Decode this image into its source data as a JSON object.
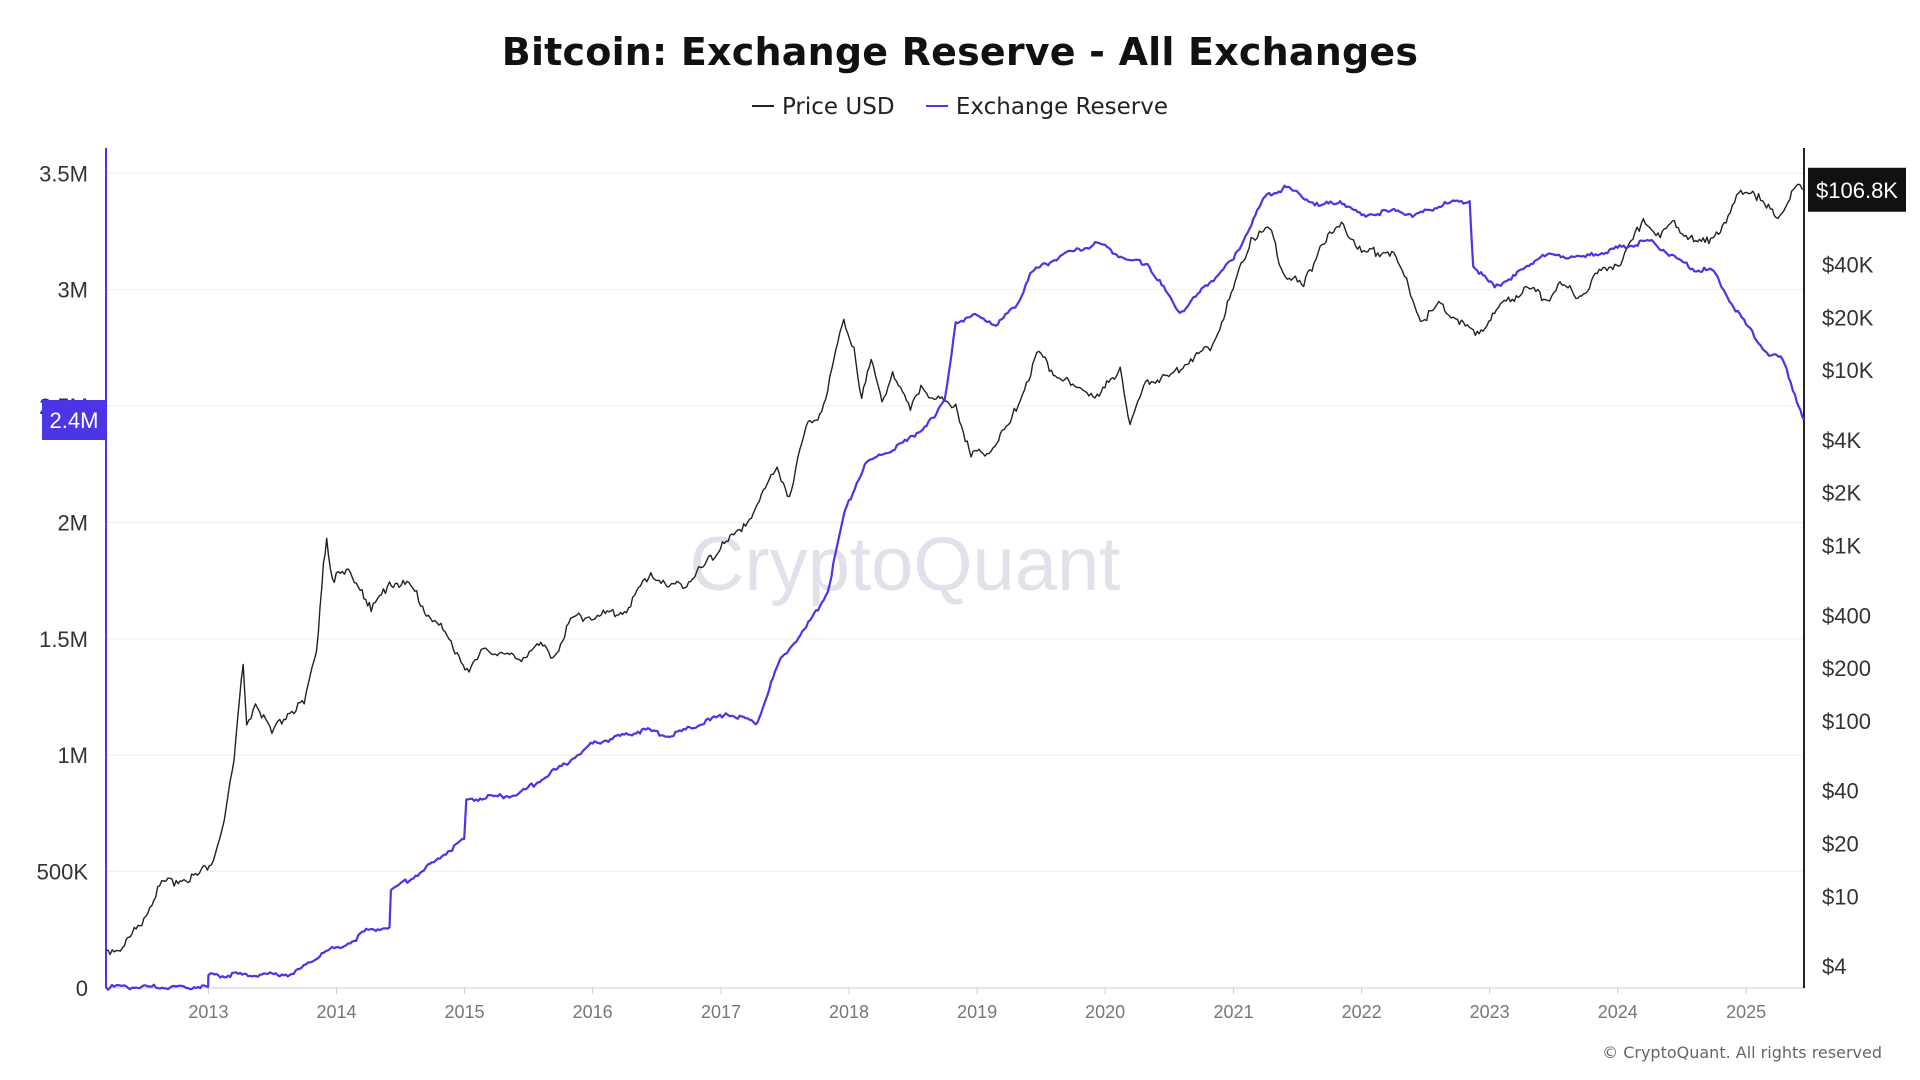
{
  "title": "Bitcoin: Exchange Reserve - All Exchanges",
  "legend": [
    {
      "label": "Price USD",
      "color": "#222222"
    },
    {
      "label": "Exchange Reserve",
      "color": "#4b35e6"
    }
  ],
  "watermark": "CryptoQuant",
  "copyright": "© CryptoQuant. All rights reserved",
  "chart_data": {
    "type": "line",
    "title": "Bitcoin: Exchange Reserve - All Exchanges",
    "xlabel": "",
    "x_ticks": [
      "2013",
      "2014",
      "2015",
      "2016",
      "2017",
      "2018",
      "2019",
      "2020",
      "2021",
      "2022",
      "2023",
      "2024",
      "2025"
    ],
    "xlim": [
      "2012-03-15",
      "2025-06-15"
    ],
    "y_left": {
      "label": "",
      "range": [
        0,
        3600000
      ],
      "ticks": [
        0,
        500000,
        1000000,
        1500000,
        2000000,
        2500000,
        3000000,
        3500000
      ],
      "tick_labels": [
        "0",
        "500K",
        "1M",
        "1.5M",
        "2M",
        "2.5M",
        "3M",
        "3.5M"
      ],
      "current_value_label": "2.4M",
      "current_value": 2440000
    },
    "y_right": {
      "label": "",
      "scale": "log",
      "range": [
        3,
        180000
      ],
      "ticks": [
        4,
        10,
        20,
        40,
        100,
        200,
        400,
        1000,
        2000,
        4000,
        10000,
        20000,
        40000
      ],
      "tick_labels": [
        "$4",
        "$10",
        "$20",
        "$40",
        "$100",
        "$200",
        "$400",
        "$1K",
        "$2K",
        "$4K",
        "$10K",
        "$20K",
        "$40K"
      ],
      "current_value_label": "$106.8K",
      "current_value": 106800
    },
    "grid": "horizontal",
    "series": [
      {
        "name": "Price USD",
        "axis": "right",
        "color": "#222222",
        "points": [
          [
            "2012-03-15",
            4.9
          ],
          [
            "2012-05-01",
            5.1
          ],
          [
            "2012-07-01",
            7.5
          ],
          [
            "2012-08-15",
            11.5
          ],
          [
            "2012-10-01",
            12.3
          ],
          [
            "2012-12-01",
            13.2
          ],
          [
            "2013-01-15",
            16
          ],
          [
            "2013-02-15",
            27
          ],
          [
            "2013-03-15",
            60
          ],
          [
            "2013-04-10",
            210
          ],
          [
            "2013-04-20",
            95
          ],
          [
            "2013-05-15",
            125
          ],
          [
            "2013-07-01",
            85
          ],
          [
            "2013-08-15",
            110
          ],
          [
            "2013-10-01",
            125
          ],
          [
            "2013-11-05",
            250
          ],
          [
            "2013-11-25",
            800
          ],
          [
            "2013-12-04",
            1100
          ],
          [
            "2013-12-20",
            650
          ],
          [
            "2014-02-10",
            700
          ],
          [
            "2014-03-15",
            560
          ],
          [
            "2014-04-10",
            420
          ],
          [
            "2014-06-01",
            620
          ],
          [
            "2014-08-01",
            590
          ],
          [
            "2014-09-20",
            400
          ],
          [
            "2014-11-01",
            330
          ],
          [
            "2015-01-14",
            190
          ],
          [
            "2015-03-01",
            260
          ],
          [
            "2015-06-01",
            225
          ],
          [
            "2015-08-01",
            270
          ],
          [
            "2015-09-15",
            235
          ],
          [
            "2015-11-05",
            390
          ],
          [
            "2016-01-15",
            400
          ],
          [
            "2016-04-01",
            420
          ],
          [
            "2016-06-15",
            700
          ],
          [
            "2016-08-01",
            580
          ],
          [
            "2016-10-01",
            620
          ],
          [
            "2016-12-31",
            960
          ],
          [
            "2017-01-05",
            1050
          ],
          [
            "2017-03-01",
            1200
          ],
          [
            "2017-06-10",
            2800
          ],
          [
            "2017-07-15",
            1900
          ],
          [
            "2017-09-01",
            4800
          ],
          [
            "2017-10-15",
            5800
          ],
          [
            "2017-12-17",
            19500
          ],
          [
            "2018-01-15",
            13500
          ],
          [
            "2018-02-06",
            6900
          ],
          [
            "2018-03-05",
            11500
          ],
          [
            "2018-04-05",
            6600
          ],
          [
            "2018-05-05",
            9800
          ],
          [
            "2018-06-25",
            5900
          ],
          [
            "2018-07-25",
            8200
          ],
          [
            "2018-09-01",
            6800
          ],
          [
            "2018-11-01",
            6400
          ],
          [
            "2018-12-15",
            3200
          ],
          [
            "2019-02-15",
            3600
          ],
          [
            "2019-04-05",
            5000
          ],
          [
            "2019-06-26",
            12800
          ],
          [
            "2019-08-01",
            10000
          ],
          [
            "2019-09-25",
            8200
          ],
          [
            "2019-12-15",
            7100
          ],
          [
            "2020-02-13",
            10400
          ],
          [
            "2020-03-12",
            4900
          ],
          [
            "2020-05-01",
            8800
          ],
          [
            "2020-07-01",
            9200
          ],
          [
            "2020-09-01",
            11600
          ],
          [
            "2020-11-01",
            13800
          ],
          [
            "2020-12-31",
            29000
          ],
          [
            "2021-02-20",
            57000
          ],
          [
            "2021-04-14",
            64000
          ],
          [
            "2021-05-22",
            36000
          ],
          [
            "2021-07-20",
            30000
          ],
          [
            "2021-09-05",
            51000
          ],
          [
            "2021-11-10",
            68000
          ],
          [
            "2022-01-01",
            47000
          ],
          [
            "2022-03-28",
            47500
          ],
          [
            "2022-05-15",
            30000
          ],
          [
            "2022-06-18",
            19000
          ],
          [
            "2022-08-15",
            24000
          ],
          [
            "2022-10-01",
            19500
          ],
          [
            "2022-11-21",
            15800
          ],
          [
            "2023-01-15",
            21000
          ],
          [
            "2023-04-15",
            30000
          ],
          [
            "2023-06-15",
            25000
          ],
          [
            "2023-07-15",
            31000
          ],
          [
            "2023-09-15",
            26500
          ],
          [
            "2023-11-15",
            37000
          ],
          [
            "2024-01-15",
            42500
          ],
          [
            "2024-03-14",
            73000
          ],
          [
            "2024-05-01",
            57000
          ],
          [
            "2024-06-05",
            71000
          ],
          [
            "2024-08-05",
            54000
          ],
          [
            "2024-09-06",
            53500
          ],
          [
            "2024-11-05",
            69000
          ],
          [
            "2024-12-17",
            106000
          ],
          [
            "2025-01-20",
            105000
          ],
          [
            "2025-02-28",
            84000
          ],
          [
            "2025-04-08",
            76500
          ],
          [
            "2025-05-22",
            111000
          ],
          [
            "2025-06-15",
            106800
          ]
        ]
      },
      {
        "name": "Exchange Reserve",
        "axis": "left",
        "color": "#4b35e6",
        "points": [
          [
            "2012-03-15",
            3000
          ],
          [
            "2012-12-31",
            5000
          ],
          [
            "2013-01-01",
            55000
          ],
          [
            "2013-09-01",
            60000
          ],
          [
            "2013-11-20",
            150000
          ],
          [
            "2014-02-15",
            200000
          ],
          [
            "2014-04-01",
            250000
          ],
          [
            "2014-06-01",
            260000
          ],
          [
            "2014-06-05",
            420000
          ],
          [
            "2014-09-01",
            500000
          ],
          [
            "2014-12-31",
            640000
          ],
          [
            "2015-01-06",
            810000
          ],
          [
            "2015-06-01",
            830000
          ],
          [
            "2015-09-01",
            920000
          ],
          [
            "2015-11-01",
            980000
          ],
          [
            "2016-01-01",
            1050000
          ],
          [
            "2016-06-01",
            1110000
          ],
          [
            "2016-08-01",
            1080000
          ],
          [
            "2016-12-01",
            1150000
          ],
          [
            "2017-01-15",
            1180000
          ],
          [
            "2017-04-15",
            1140000
          ],
          [
            "2017-06-15",
            1400000
          ],
          [
            "2017-09-01",
            1550000
          ],
          [
            "2017-11-01",
            1700000
          ],
          [
            "2017-12-20",
            2050000
          ],
          [
            "2018-02-15",
            2250000
          ],
          [
            "2018-06-15",
            2350000
          ],
          [
            "2018-09-01",
            2450000
          ],
          [
            "2018-10-01",
            2530000
          ],
          [
            "2018-11-01",
            2860000
          ],
          [
            "2019-01-01",
            2890000
          ],
          [
            "2019-03-01",
            2850000
          ],
          [
            "2019-05-01",
            2950000
          ],
          [
            "2019-06-01",
            3070000
          ],
          [
            "2019-09-01",
            3150000
          ],
          [
            "2019-12-15",
            3200000
          ],
          [
            "2020-03-01",
            3130000
          ],
          [
            "2020-05-01",
            3110000
          ],
          [
            "2020-08-01",
            2900000
          ],
          [
            "2020-09-15",
            2970000
          ],
          [
            "2021-01-01",
            3130000
          ],
          [
            "2021-04-01",
            3400000
          ],
          [
            "2021-06-01",
            3440000
          ],
          [
            "2021-09-01",
            3360000
          ],
          [
            "2021-11-01",
            3380000
          ],
          [
            "2022-01-01",
            3320000
          ],
          [
            "2022-04-15",
            3340000
          ],
          [
            "2022-06-01",
            3320000
          ],
          [
            "2022-09-01",
            3370000
          ],
          [
            "2022-11-05",
            3380000
          ],
          [
            "2022-11-15",
            3100000
          ],
          [
            "2023-01-15",
            3010000
          ],
          [
            "2023-03-15",
            3060000
          ],
          [
            "2023-06-01",
            3150000
          ],
          [
            "2023-10-01",
            3140000
          ],
          [
            "2024-01-01",
            3180000
          ],
          [
            "2024-04-01",
            3210000
          ],
          [
            "2024-06-01",
            3150000
          ],
          [
            "2024-08-01",
            3090000
          ],
          [
            "2024-10-01",
            3080000
          ],
          [
            "2024-11-20",
            2940000
          ],
          [
            "2025-01-01",
            2850000
          ],
          [
            "2025-03-01",
            2730000
          ],
          [
            "2025-04-15",
            2700000
          ],
          [
            "2025-05-20",
            2550000
          ],
          [
            "2025-06-15",
            2440000
          ]
        ]
      }
    ]
  }
}
